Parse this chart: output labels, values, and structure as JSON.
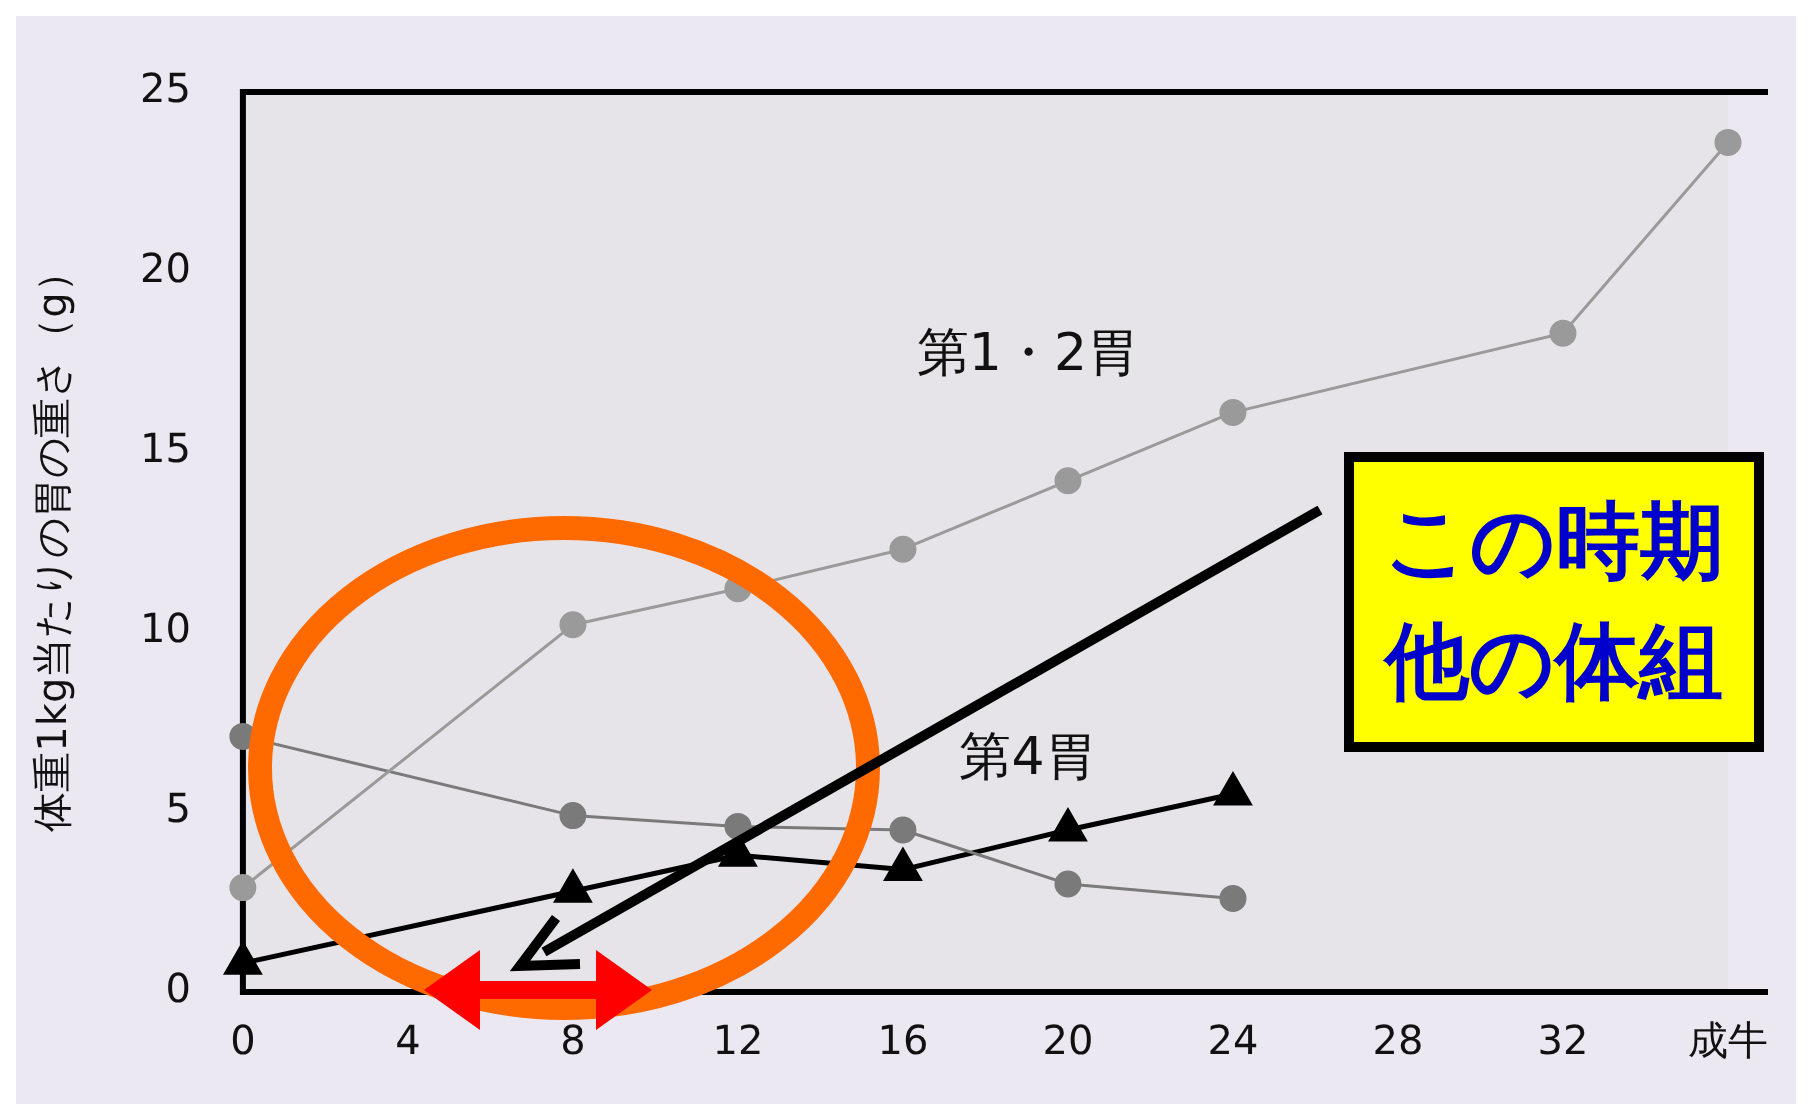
{
  "chart_data": {
    "type": "line",
    "ylabel": "体重1kg当たりの胃の重さ（g）",
    "categories": [
      "0",
      "4",
      "8",
      "12",
      "16",
      "20",
      "24",
      "28",
      "32",
      "成牛"
    ],
    "ylim": [
      0,
      25
    ],
    "yticks": [
      0,
      5,
      10,
      15,
      20,
      25
    ],
    "grid": false,
    "legend": false,
    "series": [
      {
        "name": "第1・2胃",
        "color": "#9a9a9a",
        "marker": "circle",
        "values": [
          2.9,
          null,
          10.2,
          11.2,
          12.3,
          14.2,
          16.1,
          null,
          18.3,
          23.6
        ]
      },
      {
        "name": "第4胃",
        "color": "#7a7a7a",
        "marker": "circle",
        "values": [
          7.1,
          null,
          4.9,
          4.6,
          4.5,
          3.0,
          2.6,
          null,
          null,
          null
        ]
      },
      {
        "color": "#000000",
        "marker": "triangle",
        "values": [
          0.8,
          null,
          2.8,
          3.8,
          3.4,
          4.5,
          5.5,
          null,
          null,
          null
        ]
      }
    ],
    "annotations": [
      "この時期",
      "他の体組"
    ]
  }
}
